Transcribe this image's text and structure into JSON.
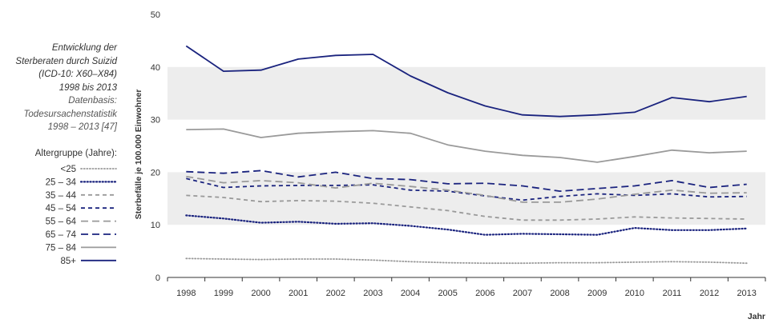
{
  "caption": {
    "line1": "Entwicklung der",
    "line2": "Sterberaten durch Suizid",
    "line3": "(ICD-10: X60–X84)",
    "line4": "1998 bis 2013",
    "source1": "Datenbasis:",
    "source2": "Todesursachenstatistik",
    "source3": "1998 – 2013 [47]"
  },
  "legend_title": "Altergruppe (Jahre):",
  "chart_data": {
    "type": "line",
    "title": "",
    "xlabel": "Jahr",
    "ylabel": "Sterbefälle je 100.000 Einwohner",
    "ylim": [
      0,
      50
    ],
    "yticks": [
      0,
      10,
      20,
      30,
      40,
      50
    ],
    "grid": "alternating horizontal bands",
    "legend_position": "left",
    "x": [
      1998,
      1999,
      2000,
      2001,
      2002,
      2003,
      2004,
      2005,
      2006,
      2007,
      2008,
      2009,
      2010,
      2011,
      2012,
      2013
    ],
    "series": [
      {
        "name": "<25",
        "color": "#9a9a9a",
        "style": "dotted-light",
        "values": [
          3.6,
          3.5,
          3.4,
          3.5,
          3.5,
          3.3,
          3.0,
          2.8,
          2.7,
          2.7,
          2.8,
          2.8,
          2.9,
          3.0,
          2.9,
          2.7
        ]
      },
      {
        "name": "25 – 34",
        "color": "#1a237e",
        "style": "dotted",
        "values": [
          11.8,
          11.2,
          10.4,
          10.6,
          10.2,
          10.3,
          9.8,
          9.1,
          8.1,
          8.3,
          8.2,
          8.1,
          9.4,
          9.0,
          9.0,
          9.3
        ]
      },
      {
        "name": "35 – 44",
        "color": "#9a9a9a",
        "style": "dashed-short",
        "values": [
          15.6,
          15.2,
          14.4,
          14.6,
          14.5,
          14.1,
          13.4,
          12.7,
          11.6,
          10.9,
          10.9,
          11.1,
          11.5,
          11.3,
          11.2,
          11.1
        ]
      },
      {
        "name": "45 – 54",
        "color": "#1a237e",
        "style": "dashed-short",
        "values": [
          18.8,
          17.1,
          17.4,
          17.5,
          17.5,
          17.6,
          16.6,
          16.4,
          15.5,
          14.7,
          15.4,
          15.9,
          15.6,
          15.9,
          15.3,
          15.4
        ]
      },
      {
        "name": "55 – 64",
        "color": "#9a9a9a",
        "style": "dashed-long",
        "values": [
          19.2,
          18.0,
          18.4,
          18.0,
          17.0,
          17.9,
          17.3,
          16.6,
          15.6,
          14.3,
          14.3,
          14.9,
          15.8,
          16.6,
          16.0,
          16.1
        ]
      },
      {
        "name": "65 – 74",
        "color": "#1a237e",
        "style": "dashed-long",
        "values": [
          20.1,
          19.8,
          20.3,
          19.1,
          20.0,
          18.8,
          18.6,
          17.8,
          17.9,
          17.4,
          16.4,
          16.9,
          17.4,
          18.4,
          17.1,
          17.7
        ]
      },
      {
        "name": "75 – 84",
        "color": "#9a9a9a",
        "style": "solid",
        "values": [
          28.1,
          28.2,
          26.6,
          27.4,
          27.7,
          27.9,
          27.4,
          25.2,
          24.0,
          23.2,
          22.8,
          21.9,
          23.0,
          24.2,
          23.7,
          24.0
        ]
      },
      {
        "name": "85+",
        "color": "#1a237e",
        "style": "solid",
        "values": [
          44.0,
          39.2,
          39.4,
          41.5,
          42.2,
          42.4,
          38.3,
          35.1,
          32.6,
          30.9,
          30.6,
          30.9,
          31.4,
          34.2,
          33.4,
          34.4
        ]
      }
    ]
  }
}
